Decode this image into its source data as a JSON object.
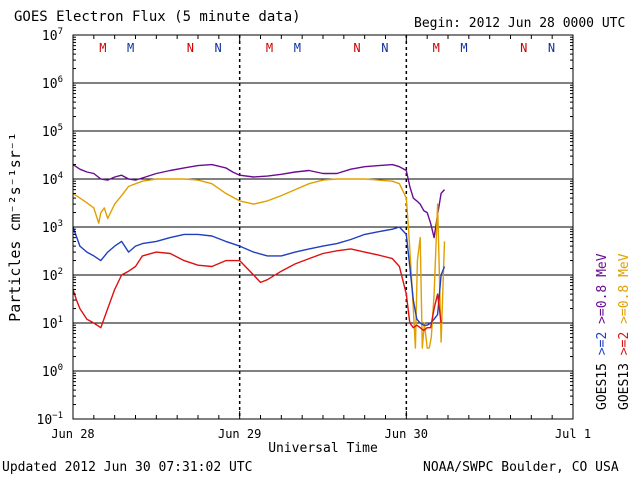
{
  "header": {
    "title": "GOES Electron Flux (5 minute data)",
    "begin": "Begin: 2012 Jun 28 0000 UTC"
  },
  "footer": {
    "updated": "Updated 2012 Jun 30 07:31:02 UTC",
    "credit": "NOAA/SWPC Boulder, CO USA"
  },
  "colors": {
    "goes15_ge2": "#1f3fbf",
    "goes15_ge08": "#6a0d91",
    "goes13_ge2": "#dd1111",
    "goes13_ge08": "#e0a000",
    "magnetopause_m": "#cc0000",
    "noon_n_red": "#cc0000",
    "noon_n_blue": "#1030a0"
  },
  "chart_data": {
    "type": "line",
    "title": "GOES Electron Flux (5 minute data)",
    "xlabel": "Universal Time",
    "ylabel": "Particles cm⁻²s⁻¹sr⁻¹",
    "yscale": "log",
    "ylim": [
      0.1,
      10000000
    ],
    "xlim": [
      0,
      72
    ],
    "x_unit": "hours since 2012 Jun 28 0000 UTC",
    "grid": true,
    "x_ticks": [
      {
        "x": 0,
        "label": "Jun 28"
      },
      {
        "x": 24,
        "label": "Jun 29"
      },
      {
        "x": 48,
        "label": "Jun 30"
      },
      {
        "x": 72,
        "label": "Jul 1"
      }
    ],
    "y_ticks": [
      {
        "exp": 7,
        "label": "10",
        "sup": "7"
      },
      {
        "exp": 6,
        "label": "10",
        "sup": "6"
      },
      {
        "exp": 5,
        "label": "10",
        "sup": "5"
      },
      {
        "exp": 4,
        "label": "10",
        "sup": "4"
      },
      {
        "exp": 3,
        "label": "10",
        "sup": "3"
      },
      {
        "exp": 2,
        "label": "10",
        "sup": "2"
      },
      {
        "exp": 1,
        "label": "10",
        "sup": "1"
      },
      {
        "exp": 0,
        "label": "10",
        "sup": "0"
      },
      {
        "exp": -1,
        "label": "10",
        "sup": "−1"
      }
    ],
    "threshold_lines": [
      {
        "y": 1000,
        "style": "dashed"
      }
    ],
    "day_markers": [
      {
        "x": 4.3,
        "label": "M",
        "color": "#cc0000"
      },
      {
        "x": 8.3,
        "label": "M",
        "color": "#1030a0"
      },
      {
        "x": 16.9,
        "label": "N",
        "color": "#cc0000"
      },
      {
        "x": 20.9,
        "label": "N",
        "color": "#1030a0"
      },
      {
        "x": 28.3,
        "label": "M",
        "color": "#cc0000"
      },
      {
        "x": 32.3,
        "label": "M",
        "color": "#1030a0"
      },
      {
        "x": 40.9,
        "label": "N",
        "color": "#cc0000"
      },
      {
        "x": 44.9,
        "label": "N",
        "color": "#1030a0"
      },
      {
        "x": 52.3,
        "label": "M",
        "color": "#cc0000"
      },
      {
        "x": 56.3,
        "label": "M",
        "color": "#1030a0"
      },
      {
        "x": 64.9,
        "label": "N",
        "color": "#cc0000"
      },
      {
        "x": 68.9,
        "label": "N",
        "color": "#1030a0"
      }
    ],
    "legend": [
      {
        "sat": "GOES15",
        "label": ">=2",
        "label2": ">=0.8 MeV",
        "color": "#1f3fbf",
        "color2": "#6a0d91"
      },
      {
        "sat": "GOES13",
        "label": ">=2",
        "label2": ">=0.8 MeV",
        "color": "#dd1111",
        "color2": "#e0a000"
      }
    ],
    "series": [
      {
        "name": "GOES15 >=0.8 MeV",
        "color": "#6a0d91",
        "x": [
          0,
          1,
          2,
          3,
          4,
          5,
          6,
          7,
          8,
          9,
          10,
          12,
          14,
          16,
          18,
          20,
          22,
          23,
          24,
          26,
          28,
          30,
          32,
          34,
          36,
          38,
          40,
          42,
          44,
          46,
          47,
          48,
          48.5,
          49,
          49.5,
          50,
          50.5,
          51,
          51.5,
          52,
          52.5,
          53,
          53.5
        ],
        "values": [
          20000,
          16000,
          14000,
          13000,
          10000,
          9500,
          11000,
          12000,
          10000,
          9500,
          10500,
          13000,
          15000,
          17000,
          19000,
          20000,
          17000,
          14000,
          12000,
          11000,
          11500,
          12500,
          14000,
          15000,
          13000,
          13000,
          16000,
          18000,
          19000,
          20000,
          18000,
          15000,
          7000,
          4000,
          3500,
          3000,
          2200,
          2000,
          1200,
          600,
          1800,
          5000,
          6000
        ]
      },
      {
        "name": "GOES13 >=0.8 MeV",
        "color": "#e0a000",
        "x": [
          0,
          1,
          2,
          3,
          3.7,
          4,
          4.5,
          5,
          6,
          7,
          8,
          10,
          12,
          14,
          16,
          18,
          20,
          22,
          24,
          26,
          28,
          30,
          32,
          34,
          36,
          38,
          40,
          42,
          44,
          46,
          47,
          48,
          48.3,
          48.6,
          49,
          49.3,
          49.6,
          50,
          50.3,
          50.6,
          51,
          51.3,
          51.6,
          52,
          52.5,
          53,
          53.5
        ],
        "values": [
          5000,
          4000,
          3200,
          2500,
          1200,
          2000,
          2500,
          1500,
          3000,
          4500,
          7000,
          9000,
          10000,
          10000,
          10000,
          9500,
          8000,
          5000,
          3500,
          3000,
          3500,
          4500,
          6000,
          8000,
          9500,
          10000,
          10000,
          10000,
          9500,
          9000,
          8000,
          4000,
          1000,
          200,
          20,
          3,
          200,
          600,
          3,
          10,
          3,
          3,
          5,
          40,
          3000,
          4,
          500
        ]
      },
      {
        "name": "GOES15 >=2 MeV",
        "color": "#1f3fbf",
        "x": [
          0,
          1,
          2,
          3,
          4,
          5,
          6,
          7,
          8,
          9,
          10,
          12,
          14,
          16,
          18,
          20,
          22,
          24,
          26,
          28,
          30,
          32,
          34,
          36,
          38,
          40,
          42,
          44,
          46,
          47,
          48,
          48.5,
          49,
          49.5,
          50,
          50.5,
          51,
          51.5,
          52,
          52.5,
          53,
          53.5
        ],
        "values": [
          1000,
          400,
          300,
          250,
          200,
          300,
          400,
          500,
          300,
          400,
          450,
          500,
          600,
          700,
          700,
          650,
          500,
          400,
          300,
          250,
          250,
          300,
          350,
          400,
          450,
          550,
          700,
          800,
          900,
          1000,
          700,
          150,
          30,
          12,
          10,
          9,
          9,
          10,
          12,
          15,
          100,
          150
        ]
      },
      {
        "name": "GOES13 >=2 MeV",
        "color": "#dd1111",
        "x": [
          0,
          0.5,
          1,
          2,
          3,
          4,
          5,
          6,
          7,
          8,
          9,
          10,
          12,
          14,
          16,
          18,
          20,
          22,
          24,
          26,
          27,
          28,
          30,
          32,
          34,
          36,
          38,
          40,
          42,
          44,
          46,
          47,
          48,
          48.5,
          49,
          49.5,
          50,
          50.5,
          51,
          51.5,
          52,
          52.5,
          53
        ],
        "values": [
          50,
          30,
          20,
          12,
          10,
          8,
          20,
          50,
          100,
          120,
          150,
          250,
          300,
          280,
          200,
          160,
          150,
          200,
          200,
          100,
          70,
          80,
          120,
          170,
          220,
          280,
          320,
          350,
          300,
          260,
          220,
          150,
          40,
          10,
          8,
          9,
          8,
          7,
          8,
          8,
          20,
          40,
          10
        ]
      }
    ]
  }
}
